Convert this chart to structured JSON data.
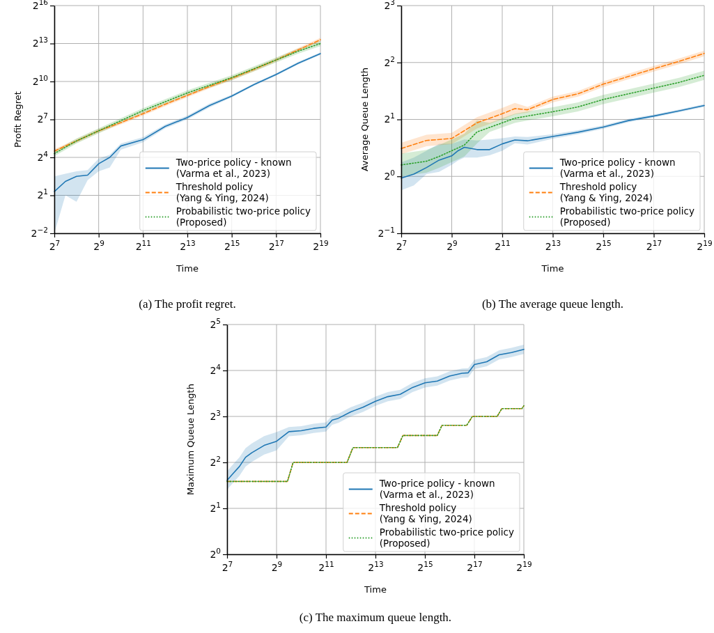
{
  "chart_data": [
    {
      "type": "line",
      "xlabel": "Time",
      "ylabel": "Profit Regret",
      "log": "xy",
      "grid": true,
      "legend": "bottom right",
      "xlim": [
        128,
        524288
      ],
      "ylim": [
        0.25,
        65536
      ],
      "xticks": [
        {
          "value": 128,
          "label": "2$^{7}$"
        },
        {
          "value": 512,
          "label": "2$^{9}$"
        },
        {
          "value": 2048,
          "label": "2$^{11}$"
        },
        {
          "value": 8192,
          "label": "2$^{13}$"
        },
        {
          "value": 32768,
          "label": "2$^{15}$"
        },
        {
          "value": 131072,
          "label": "2$^{17}$"
        },
        {
          "value": 524288,
          "label": "2$^{19}$"
        }
      ],
      "yticks": [
        {
          "value": 0.25,
          "label": "2$^{−2}$"
        },
        {
          "value": 2,
          "label": "2$^{1}$"
        },
        {
          "value": 16,
          "label": "2$^{4}$"
        },
        {
          "value": 128,
          "label": "2$^{7}$"
        },
        {
          "value": 1024,
          "label": "2$^{10}$"
        },
        {
          "value": 8192,
          "label": "2$^{13}$"
        },
        {
          "value": 65536,
          "label": "2$^{16}$"
        }
      ],
      "annotations": [
        "(a) The profit regret."
      ],
      "series": [
        {
          "name": "Two-price policy - known\n(Varma et al., 2023)",
          "color": "#1f77b4",
          "line_style": "solid",
          "x": [
            128,
            181,
            256,
            362,
            512,
            724,
            1024,
            2048,
            4096,
            8192,
            16384,
            32768,
            65536,
            131072,
            262144,
            524288
          ],
          "values": [
            2.46,
            4.29,
            5.66,
            6.06,
            11.3,
            16,
            29.9,
            42.2,
            87.4,
            142,
            274,
            461,
            861,
            1499,
            2797,
            4705
          ],
          "lower": [
            0.25,
            2,
            1.41,
            4.59,
            7.46,
            9.19,
            24.3,
            36.8,
            78.8,
            128,
            247,
            431,
            803,
            1399,
            2610,
            4390
          ],
          "upper": [
            5.66,
            6.5,
            7.46,
            8,
            14.9,
            18.4,
            34.3,
            48.5,
            97,
            158,
            304,
            495,
            923,
            1607,
            2997,
            5042
          ]
        },
        {
          "name": "Threshold policy\n(Yang & Ying, 2024)",
          "color": "#ff7f0e",
          "line_style": "dashed",
          "x": [
            128,
            256,
            512,
            1024,
            2048,
            4096,
            8192,
            16384,
            32768,
            65536,
            131072,
            262144,
            524288
          ],
          "values": [
            22.6,
            39.4,
            68.6,
            107.6,
            174.8,
            294,
            478,
            776,
            1218,
            1978,
            3327,
            5793,
            10086
          ],
          "lower": [
            20.4,
            35.5,
            61.8,
            96.9,
            157.5,
            265,
            431,
            699,
            1097,
            1782,
            2997,
            5219,
            9086
          ],
          "upper": [
            25.1,
            43.7,
            76.1,
            119.4,
            194,
            326,
            531,
            861,
            1352,
            2196,
            3693,
            6430,
            11195
          ]
        },
        {
          "name": "Probabilistic two-price policy\n(Proposed)",
          "color": "#2ca02c",
          "line_style": "dotted",
          "x": [
            128,
            256,
            512,
            1024,
            2048,
            4096,
            8192,
            16384,
            32768,
            65536,
            131072,
            262144,
            524288
          ],
          "values": [
            19.7,
            39.4,
            68.6,
            119.4,
            208,
            338,
            549,
            832,
            1261,
            2048,
            3327,
            5405,
            8192
          ],
          "lower": [
            17.1,
            34.3,
            59.7,
            103.9,
            181,
            294,
            478,
            724,
            1097,
            1782,
            2896,
            4704,
            7130
          ],
          "upper": [
            22.6,
            45.3,
            78.8,
            137.2,
            239,
            388,
            631,
            956,
            1449,
            2353,
            3823,
            6210,
            9413
          ]
        }
      ]
    },
    {
      "type": "line",
      "xlabel": "Time",
      "ylabel": "Average Queue Length",
      "log": "xy",
      "grid": true,
      "legend": "bottom right",
      "xlim": [
        128,
        524288
      ],
      "ylim": [
        0.5,
        8
      ],
      "xticks": [
        {
          "value": 128,
          "label": "2$^{7}$"
        },
        {
          "value": 512,
          "label": "2$^{9}$"
        },
        {
          "value": 2048,
          "label": "2$^{11}$"
        },
        {
          "value": 8192,
          "label": "2$^{13}$"
        },
        {
          "value": 32768,
          "label": "2$^{15}$"
        },
        {
          "value": 131072,
          "label": "2$^{17}$"
        },
        {
          "value": 524288,
          "label": "2$^{19}$"
        }
      ],
      "yticks": [
        {
          "value": 0.5,
          "label": "2$^{−1}$"
        },
        {
          "value": 1,
          "label": "2$^{0}$"
        },
        {
          "value": 2,
          "label": "2$^{1}$"
        },
        {
          "value": 4,
          "label": "2$^{2}$"
        },
        {
          "value": 8,
          "label": "2$^{3}$"
        }
      ],
      "annotations": [
        "(b) The average queue length."
      ],
      "series": [
        {
          "name": "Two-price policy - known\n(Varma et al., 2023)",
          "color": "#1f77b4",
          "line_style": "solid",
          "x": [
            128,
            181,
            256,
            362,
            512,
            609,
            724,
            1024,
            1448,
            2048,
            2896,
            4096,
            8192,
            16384,
            32768,
            65536,
            131072,
            262144,
            524288
          ],
          "values": [
            0.979,
            1.028,
            1.113,
            1.219,
            1.283,
            1.366,
            1.424,
            1.385,
            1.385,
            1.485,
            1.558,
            1.542,
            1.625,
            1.711,
            1.821,
            1.973,
            2.085,
            2.219,
            2.37
          ],
          "lower": [
            0.844,
            0.895,
            1.028,
            1.057,
            1.149,
            1.214,
            1.257,
            1.257,
            1.292,
            1.366,
            1.495,
            1.474,
            1.58,
            1.67,
            1.784,
            1.932,
            2.049,
            2.181,
            2.33
          ],
          "upper": [
            1.185,
            1.257,
            1.366,
            1.485,
            1.485,
            1.526,
            1.569,
            1.548,
            1.569,
            1.591,
            1.625,
            1.613,
            1.67,
            1.753,
            1.86,
            2.014,
            2.121,
            2.258,
            2.412
          ]
        },
        {
          "name": "Threshold policy\n(Yang & Ying, 2024)",
          "color": "#ff7f0e",
          "line_style": "dashed",
          "x": [
            128,
            256,
            512,
            1024,
            2048,
            2896,
            4096,
            8192,
            16384,
            32768,
            65536,
            131072,
            262144,
            524288
          ],
          "values": [
            1.404,
            1.548,
            1.586,
            1.919,
            2.144,
            2.282,
            2.25,
            2.549,
            2.732,
            3.073,
            3.375,
            3.706,
            4.056,
            4.469
          ],
          "lower": [
            1.31,
            1.444,
            1.479,
            1.79,
            2.0,
            2.129,
            2.174,
            2.463,
            2.64,
            2.969,
            3.261,
            3.581,
            3.919,
            4.318
          ],
          "upper": [
            1.505,
            1.659,
            1.7,
            2.057,
            2.298,
            2.446,
            2.329,
            2.638,
            2.828,
            3.181,
            3.493,
            3.836,
            4.198,
            4.625
          ]
        },
        {
          "name": "Probabilistic two-price policy\n(Proposed)",
          "color": "#2ca02c",
          "line_style": "dotted",
          "x": [
            128,
            256,
            362,
            512,
            724,
            1024,
            1448,
            2048,
            2896,
            4096,
            8192,
            16384,
            32768,
            65536,
            131072,
            262144,
            524288
          ],
          "values": [
            1.149,
            1.202,
            1.274,
            1.366,
            1.464,
            1.717,
            1.815,
            1.919,
            2.028,
            2.085,
            2.196,
            2.329,
            2.549,
            2.732,
            2.928,
            3.138,
            3.422
          ],
          "lower": [
            1.0,
            1.046,
            1.109,
            1.189,
            1.274,
            1.494,
            1.717,
            1.816,
            1.919,
            1.973,
            2.078,
            2.203,
            2.412,
            2.585,
            2.77,
            2.969,
            3.237
          ],
          "upper": [
            1.32,
            1.381,
            1.464,
            1.569,
            1.682,
            1.973,
            1.918,
            2.028,
            2.144,
            2.204,
            2.321,
            2.462,
            2.694,
            2.888,
            3.095,
            3.317,
            3.617
          ]
        }
      ]
    },
    {
      "type": "line",
      "xlabel": "Time",
      "ylabel": "Maximum Queue Length",
      "log": "xy",
      "grid": true,
      "legend": "bottom right",
      "xlim": [
        128,
        524288
      ],
      "ylim": [
        1,
        32
      ],
      "xticks": [
        {
          "value": 128,
          "label": "2$^{7}$"
        },
        {
          "value": 512,
          "label": "2$^{9}$"
        },
        {
          "value": 2048,
          "label": "2$^{11}$"
        },
        {
          "value": 8192,
          "label": "2$^{13}$"
        },
        {
          "value": 32768,
          "label": "2$^{15}$"
        },
        {
          "value": 131072,
          "label": "2$^{17}$"
        },
        {
          "value": 524288,
          "label": "2$^{19}$"
        }
      ],
      "yticks": [
        {
          "value": 1,
          "label": "2$^{0}$"
        },
        {
          "value": 2,
          "label": "2$^{1}$"
        },
        {
          "value": 4,
          "label": "2$^{2}$"
        },
        {
          "value": 8,
          "label": "2$^{3}$"
        },
        {
          "value": 16,
          "label": "2$^{4}$"
        },
        {
          "value": 32,
          "label": "2$^{5}$"
        }
      ],
      "annotations": [
        "(c) The maximum queue length."
      ],
      "series": [
        {
          "name": "Two-price policy - known\n(Varma et al., 2023)",
          "color": "#1f77b4",
          "line_style": "solid",
          "x": [
            128,
            152,
            181,
            215,
            256,
            362,
            512,
            724,
            1024,
            1448,
            2048,
            2435,
            2896,
            4096,
            5793,
            8192,
            11585,
            16384,
            23170,
            32768,
            46341,
            65536,
            92682,
            110230,
            131072,
            185364,
            262144,
            370728,
            524288
          ],
          "values": [
            3.05,
            3.39,
            3.76,
            4.32,
            4.63,
            5.17,
            5.5,
            6.36,
            6.45,
            6.68,
            6.82,
            7.57,
            7.78,
            8.57,
            9.19,
            10.06,
            10.78,
            11.16,
            12.38,
            13.27,
            13.64,
            14.72,
            15.35,
            15.45,
            17.51,
            18.25,
            20.25,
            20.97,
            22.0
          ],
          "lower": [
            2.65,
            2.95,
            3.27,
            3.76,
            4.03,
            4.5,
            4.79,
            5.93,
            6.02,
            6.23,
            6.36,
            7.06,
            7.26,
            7.99,
            8.57,
            9.38,
            10.06,
            10.41,
            11.55,
            12.38,
            12.72,
            13.73,
            14.32,
            14.41,
            16.33,
            17.02,
            18.89,
            19.56,
            20.52
          ],
          "upper": [
            3.5,
            3.9,
            4.32,
            4.96,
            5.32,
            5.94,
            6.32,
            6.82,
            6.91,
            7.16,
            7.31,
            8.12,
            8.34,
            9.19,
            9.85,
            10.78,
            11.56,
            11.96,
            13.27,
            14.23,
            14.62,
            15.78,
            16.46,
            16.56,
            18.77,
            19.56,
            21.71,
            22.48,
            23.58
          ]
        },
        {
          "name": "Threshold policy\n(Yang & Ying, 2024)",
          "color": "#ff7f0e",
          "line_style": "dashed",
          "x": [
            128,
            695,
            815,
            3693,
            4358,
            15180,
            17680,
            46341,
            52860,
            105700,
            124000,
            248000,
            282900,
            496000,
            524288
          ],
          "values": [
            3,
            3,
            4,
            4,
            5,
            5,
            6,
            6,
            7,
            7,
            8,
            8,
            9,
            9,
            9.4
          ]
        },
        {
          "name": "Probabilistic two-price policy\n(Proposed)",
          "color": "#2ca02c",
          "line_style": "dotted",
          "x": [
            128,
            695,
            815,
            3693,
            4358,
            15180,
            17680,
            46341,
            52860,
            105700,
            124000,
            248000,
            282900,
            496000,
            524288
          ],
          "values": [
            3,
            3,
            4,
            4,
            5,
            5,
            6,
            6,
            7,
            7,
            8,
            8,
            9,
            9,
            9.4
          ]
        }
      ]
    }
  ]
}
